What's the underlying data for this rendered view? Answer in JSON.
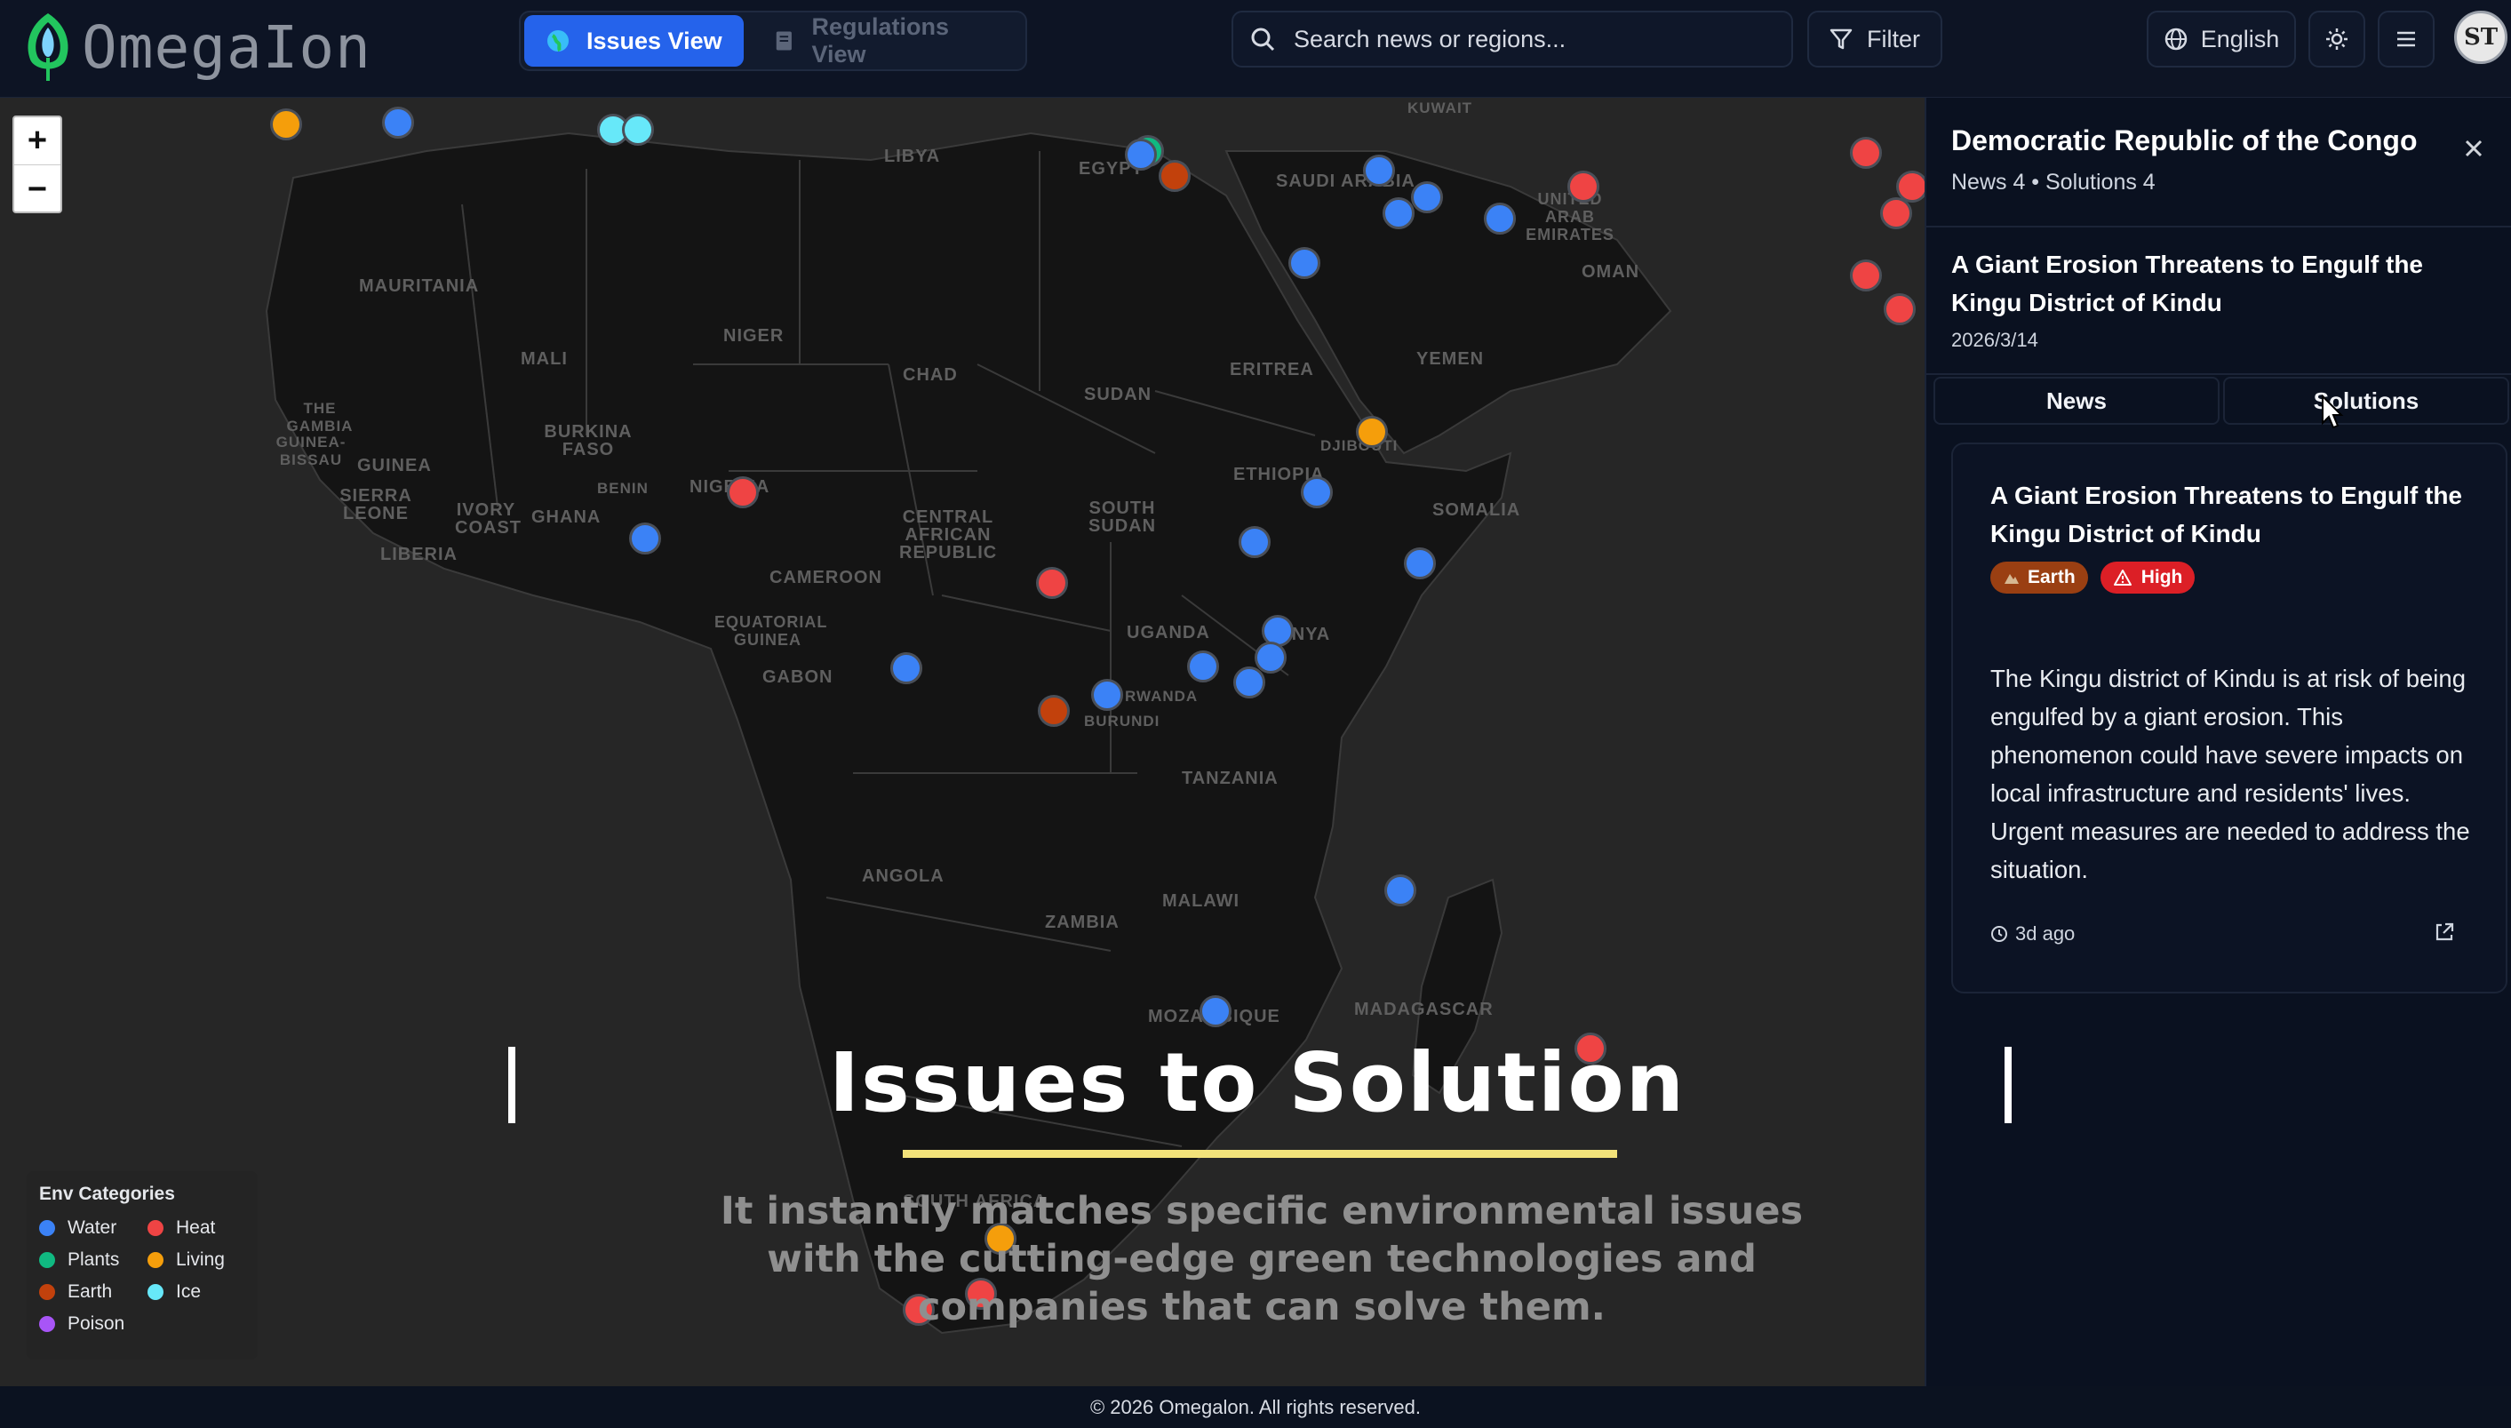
{
  "app": {
    "name": "OmegaIon"
  },
  "header": {
    "views": [
      {
        "label": "Issues View",
        "active": true,
        "icon": "globe-icon"
      },
      {
        "label": "Regulations View",
        "active": false,
        "icon": "document-icon"
      }
    ],
    "search": {
      "placeholder": "Search news or regions..."
    },
    "filter_label": "Filter",
    "language_label": "English"
  },
  "map": {
    "zoom_in": "+",
    "zoom_out": "−",
    "labels": [
      "LIBYA",
      "EGYPT",
      "SAUDI ARABIA",
      "KUWAIT",
      "UNITED ARAB EMIRATES",
      "OMAN",
      "YEMEN",
      "MAURITANIA",
      "MALI",
      "NIGER",
      "CHAD",
      "SUDAN",
      "ERITREA",
      "DJIBOUTI",
      "THE GAMBIA",
      "GUINEA-BISSAU",
      "GUINEA",
      "SIERRA LEONE",
      "LIBERIA",
      "IVORY COAST",
      "GHANA",
      "BENIN",
      "BURKINA FASO",
      "NIGERIA",
      "CENTRAL AFRICAN REPUBLIC",
      "SOUTH SUDAN",
      "ETHIOPIA",
      "SOMALIA",
      "CAMEROON",
      "EQUATORIAL GUINEA",
      "GABON",
      "UGANDA",
      "KENYA",
      "RWANDA",
      "BURUNDI",
      "TANZANIA",
      "ANGOLA",
      "ZAMBIA",
      "MALAWI",
      "MOZAMBIQUE",
      "MADAGASCAR",
      "SOUTH AFRICA"
    ],
    "legend": {
      "title": "Env Categories",
      "items": [
        {
          "label": "Water",
          "color": "#3b82f6"
        },
        {
          "label": "Heat",
          "color": "#ef4444"
        },
        {
          "label": "Plants",
          "color": "#10b981"
        },
        {
          "label": "Living",
          "color": "#f59e0b"
        },
        {
          "label": "Earth",
          "color": "#c2410c"
        },
        {
          "label": "Ice",
          "color": "#67e8f9"
        },
        {
          "label": "Poison",
          "color": "#a855f7"
        }
      ]
    },
    "overlay": {
      "title": "Issues to Solution",
      "subtitle": "It instantly matches specific environmental issues with the cutting-edge green technologies and companies that can solve them."
    }
  },
  "panel": {
    "country": "Democratic Republic of the Congo",
    "counts": "News 4 • Solutions 4",
    "news_title": "A Giant Erosion Threatens to Engulf the Kingu District of Kindu",
    "news_date": "2026/3/14",
    "tabs": [
      "News",
      "Solutions"
    ],
    "card": {
      "title": "A Giant Erosion Threatens to Engulf the Kingu District of Kindu",
      "badges": [
        {
          "label": "Earth",
          "icon": "earth-icon"
        },
        {
          "label": "High",
          "icon": "warning-icon"
        }
      ],
      "body": "The Kingu district of Kindu is at risk of being engulfed by a giant erosion. This phenomenon could have severe impacts on local infrastructure and residents' lives. Urgent measures are needed to address the situation.",
      "time": "3d ago"
    }
  },
  "footer": {
    "text": "© 2026 Omegalon. All rights reserved."
  }
}
